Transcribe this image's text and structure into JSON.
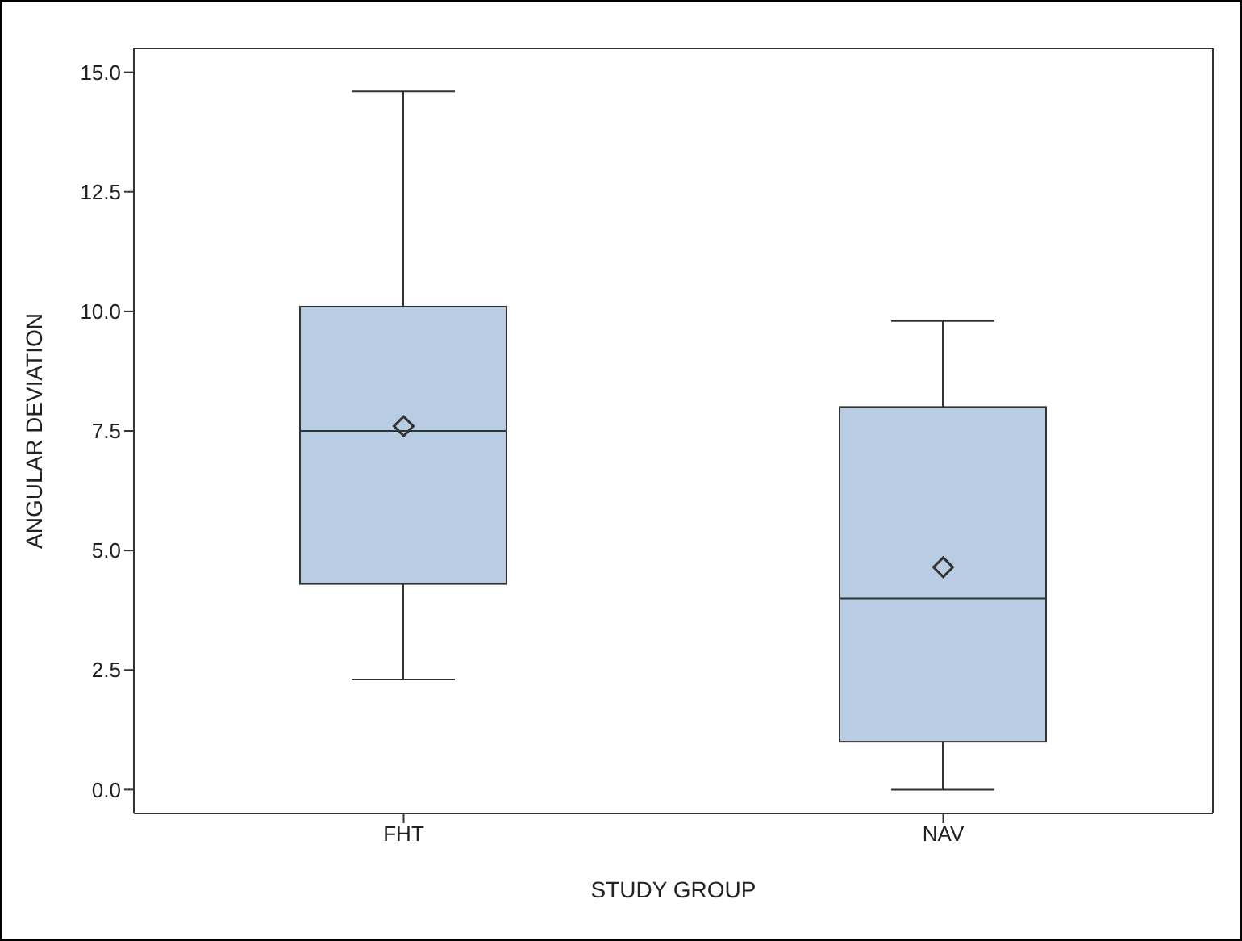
{
  "chart_data": {
    "type": "box",
    "xlabel": "STUDY GROUP",
    "ylabel": "ANGULAR DEVIATION",
    "categories": [
      "FHT",
      "NAV"
    ],
    "color": "#b8cce4",
    "ylim": [
      -0.5,
      15.5
    ],
    "yticks": [
      {
        "value": 0,
        "label": "0.0"
      },
      {
        "value": 2.5,
        "label": "2.5"
      },
      {
        "value": 5,
        "label": "5.0"
      },
      {
        "value": 7.5,
        "label": "7.5"
      },
      {
        "value": 10,
        "label": "10.0"
      },
      {
        "value": 12.5,
        "label": "12.5"
      },
      {
        "value": 15,
        "label": "15.0"
      }
    ],
    "marker": "diamond",
    "boxes": [
      {
        "low": 2.3,
        "q1": 4.3,
        "median": 7.5,
        "q3": 10.1,
        "high": 14.6,
        "mean": 7.6
      },
      {
        "low": 0,
        "q1": 1.0,
        "median": 4.0,
        "q3": 8.0,
        "high": 9.8,
        "mean": 4.65
      }
    ]
  }
}
